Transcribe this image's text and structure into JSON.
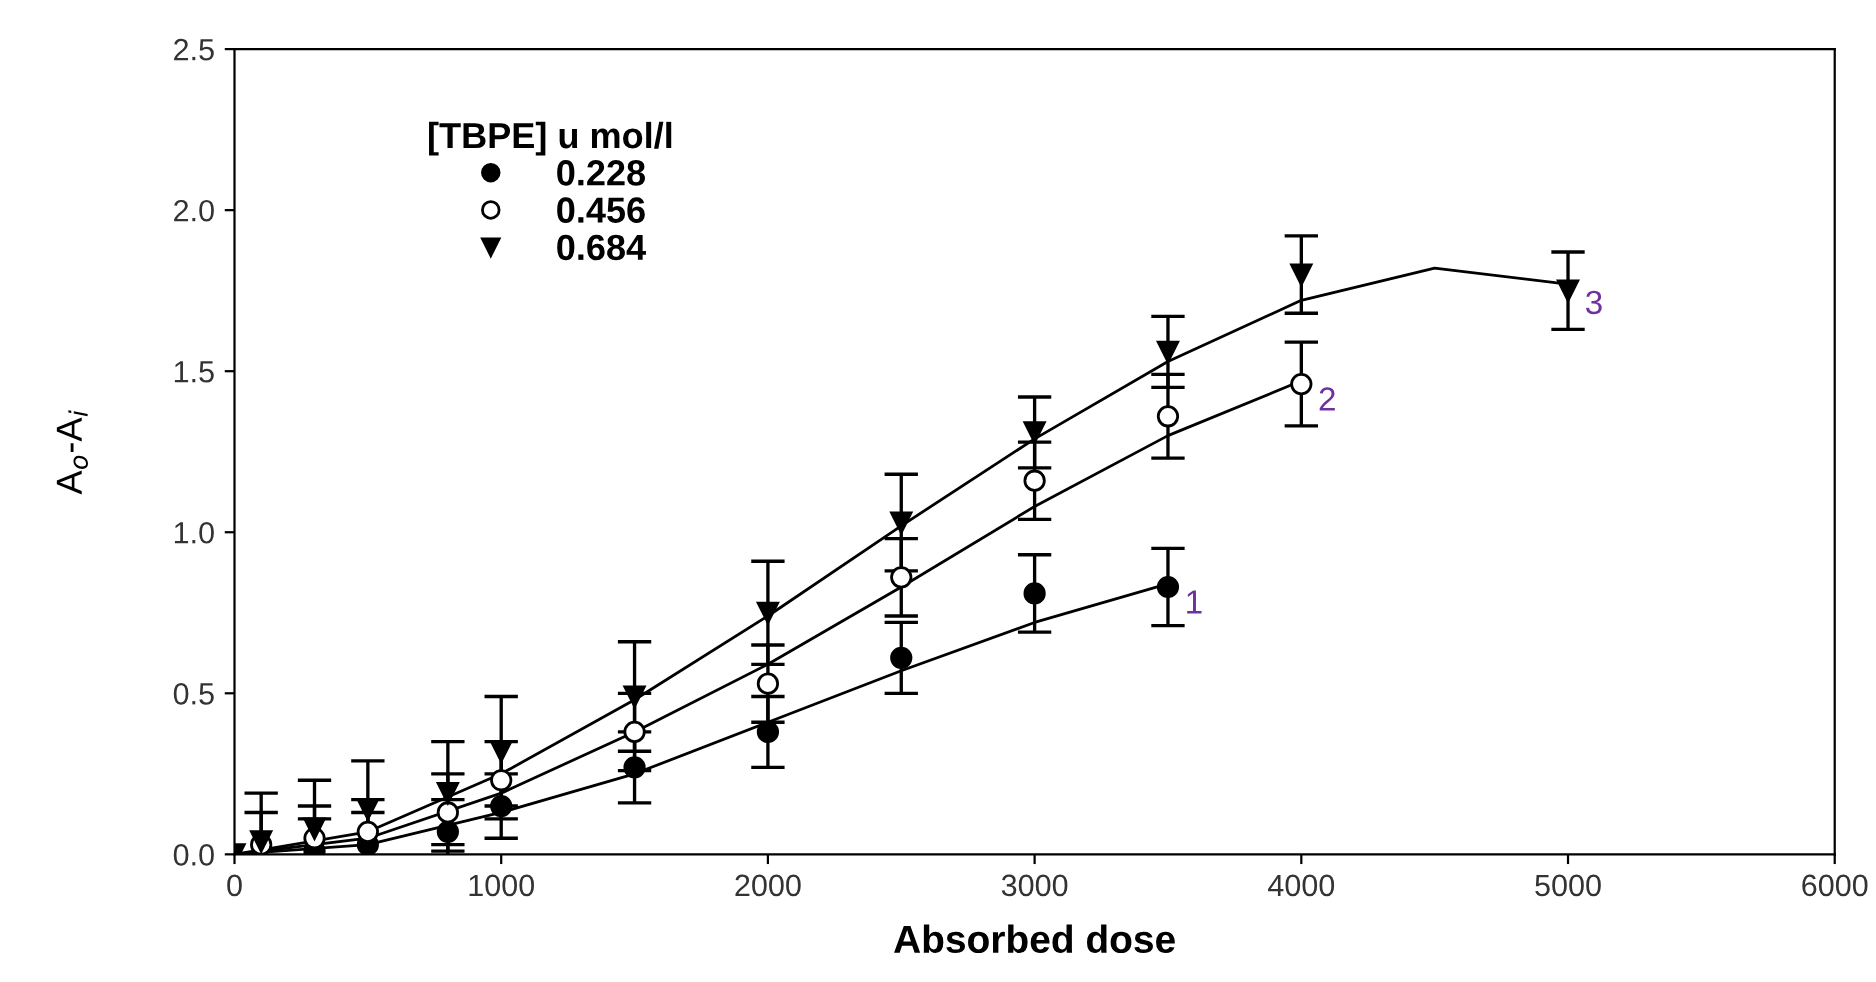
{
  "chart_data": {
    "type": "scatter",
    "xlabel": "Absorbed dose",
    "ylabel": "A$_{o}$-A$_{i}$",
    "legend_title": "[TBPE] u mol/l",
    "legend": "top left",
    "grid": false,
    "xlim": [
      0,
      6000
    ],
    "xticks": [
      0,
      1000,
      2000,
      3000,
      4000,
      5000,
      6000
    ],
    "ylim": [
      0,
      2.5
    ],
    "yticks": [
      {
        "value": 0,
        "label": "0.0"
      },
      {
        "value": 0.5,
        "label": "0.5"
      },
      {
        "value": 1,
        "label": "1.0"
      },
      {
        "value": 1.5,
        "label": "1.5"
      },
      {
        "value": 2,
        "label": "2.0"
      },
      {
        "value": 2.5,
        "label": "2.5"
      }
    ],
    "series": [
      {
        "name": "0.228",
        "color": "#000000",
        "marker": "circle",
        "x": [
          300,
          500,
          800,
          1000,
          1500,
          2000,
          2500,
          3000,
          3500
        ],
        "values": [
          0.01,
          0.03,
          0.07,
          0.15,
          0.27,
          0.38,
          0.61,
          0.81,
          0.83
        ],
        "errors": [
          0.1,
          0.1,
          0.1,
          0.1,
          0.11,
          0.11,
          0.11,
          0.12,
          0.12
        ]
      },
      {
        "name": "0.456",
        "color": "#ffffff",
        "marker": "circle",
        "x": [
          100,
          300,
          500,
          800,
          1000,
          1500,
          2000,
          2500,
          3000,
          3500,
          4000
        ],
        "values": [
          0.03,
          0.05,
          0.07,
          0.13,
          0.23,
          0.38,
          0.53,
          0.86,
          1.16,
          1.36,
          1.46
        ],
        "errors": [
          0.1,
          0.1,
          0.1,
          0.12,
          0.12,
          0.12,
          0.12,
          0.12,
          0.12,
          0.13,
          0.13
        ]
      },
      {
        "name": "0.684",
        "color": "#000000",
        "marker": "triangle",
        "x": [
          0,
          100,
          300,
          500,
          800,
          1000,
          1500,
          2000,
          2500,
          3000,
          3500,
          4000,
          5000
        ],
        "values": [
          0,
          0.04,
          0.08,
          0.14,
          0.19,
          0.32,
          0.49,
          0.75,
          1.03,
          1.31,
          1.56,
          1.8,
          1.75
        ],
        "errors": [
          null,
          0.15,
          0.15,
          0.15,
          0.16,
          0.17,
          0.17,
          0.16,
          0.15,
          0.11,
          0.11,
          0.12,
          0.12
        ]
      },
      {
        "type": "line",
        "color": "#000000",
        "marker": "none",
        "x": [
          0,
          500,
          1000,
          1500,
          2000,
          2500,
          3000,
          3500
        ],
        "values": [
          0,
          0.03,
          0.13,
          0.25,
          0.41,
          0.57,
          0.72,
          0.84
        ]
      },
      {
        "type": "line",
        "color": "#000000",
        "marker": "none",
        "x": [
          0,
          500,
          1000,
          1500,
          2000,
          2500,
          3000,
          3500,
          4000
        ],
        "values": [
          0,
          0.05,
          0.19,
          0.38,
          0.59,
          0.83,
          1.08,
          1.3,
          1.47
        ]
      },
      {
        "type": "line",
        "color": "#000000",
        "marker": "none",
        "x": [
          0,
          500,
          1000,
          1500,
          2000,
          2500,
          3000,
          3500,
          4000,
          4500,
          5000
        ],
        "values": [
          0,
          0.07,
          0.25,
          0.48,
          0.74,
          1.02,
          1.29,
          1.53,
          1.72,
          1.82,
          1.77
        ]
      }
    ],
    "annotations": [
      {
        "text": "1",
        "x": 3500,
        "y": 0.84
      },
      {
        "text": "2",
        "x": 4000,
        "y": 1.47
      },
      {
        "text": "3",
        "x": 5000,
        "y": 1.77
      }
    ]
  }
}
